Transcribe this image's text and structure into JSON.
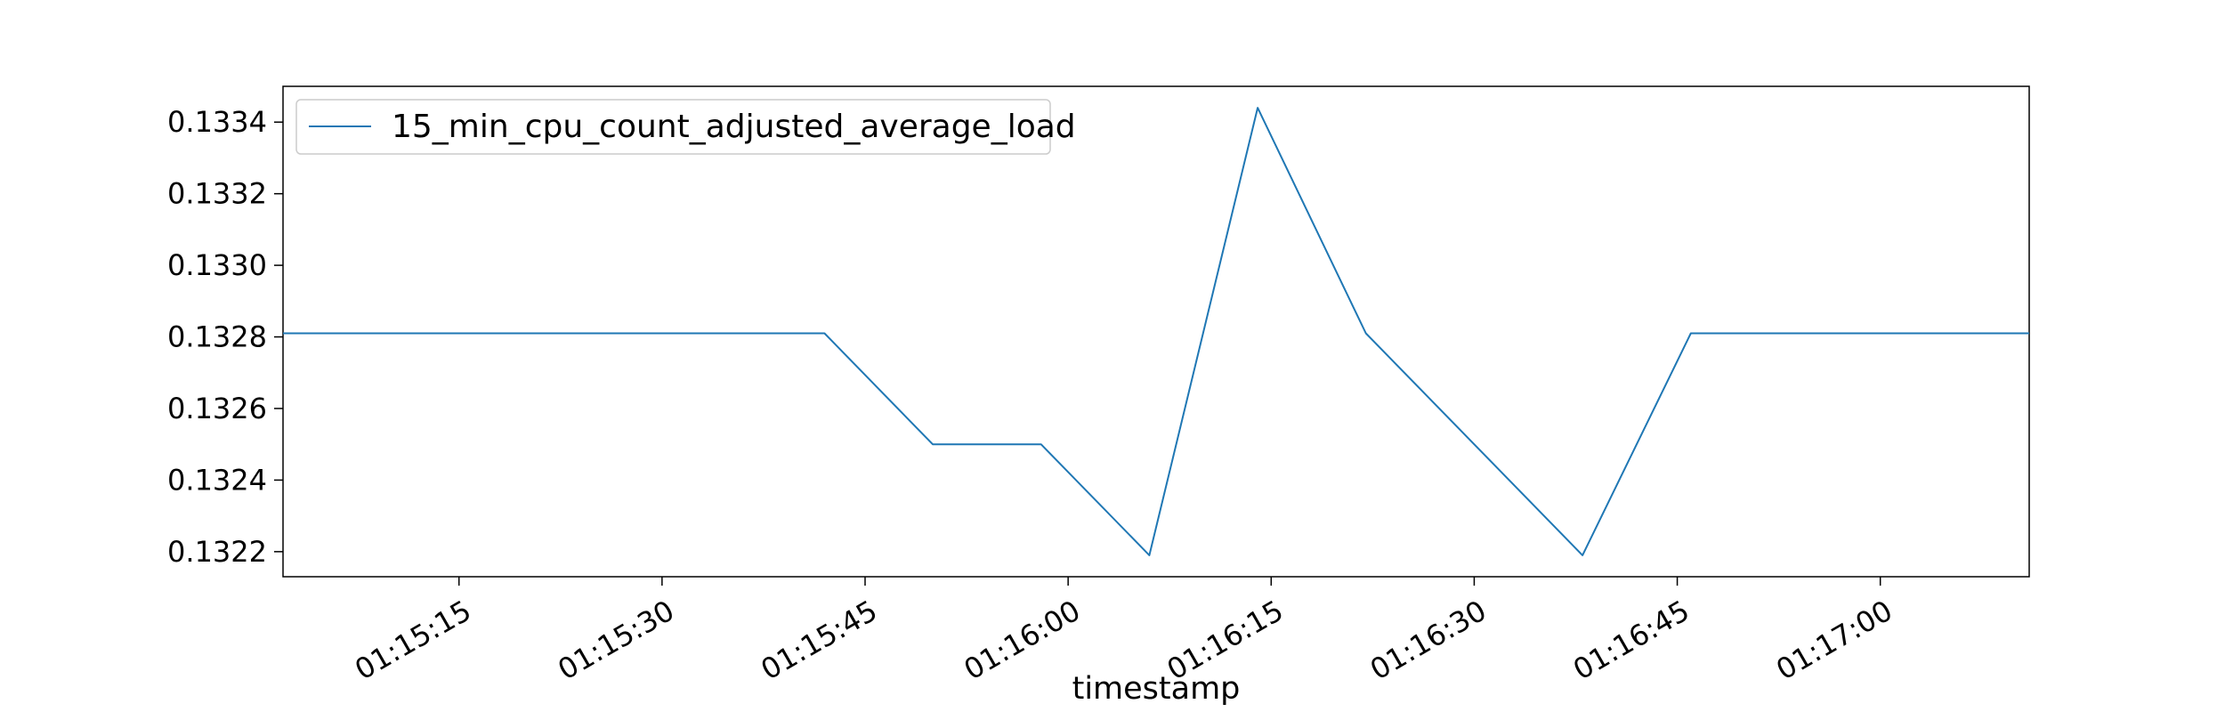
{
  "chart_data": {
    "type": "line",
    "title": "",
    "xlabel": "timestamp",
    "ylabel": "",
    "x_ticks": [
      "01:15:15",
      "01:15:30",
      "01:15:45",
      "01:16:00",
      "01:16:15",
      "01:16:30",
      "01:16:45",
      "01:17:00"
    ],
    "y_ticks": [
      "0.1322",
      "0.1324",
      "0.1326",
      "0.1328",
      "0.1330",
      "0.1332",
      "0.1334"
    ],
    "xlim": [
      "01:15:02",
      "01:17:11"
    ],
    "ylim": [
      0.13213,
      0.1335
    ],
    "grid": false,
    "legend_position": "upper-left",
    "series": [
      {
        "name": "15_min_cpu_count_adjusted_average_load",
        "color": "#1f77b4",
        "x": [
          "01:15:02",
          "01:15:42",
          "01:15:50",
          "01:15:58",
          "01:16:06",
          "01:16:14",
          "01:16:22",
          "01:16:38",
          "01:16:46",
          "01:17:11"
        ],
        "y": [
          0.13281,
          0.13281,
          0.1325,
          0.1325,
          0.13219,
          0.13344,
          0.13281,
          0.13219,
          0.13281,
          0.13281
        ]
      }
    ]
  }
}
